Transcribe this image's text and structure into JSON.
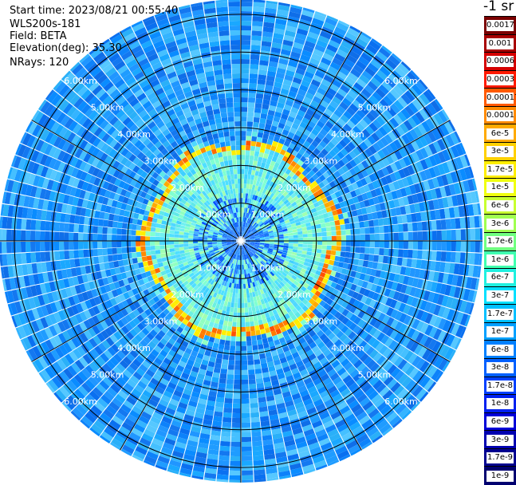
{
  "info": {
    "start_time": "Start time: 2023/08/21 00:55:40",
    "instrument": "WLS200s-181",
    "field": "Field: BETA",
    "elevation": "Elevation(deg): 35.30",
    "nrays": "NRays: 120"
  },
  "colorbar": {
    "title": "-1 sr",
    "levels": [
      {
        "label": "0.0017",
        "color": "#7a0000"
      },
      {
        "label": "0.001",
        "color": "#a80000"
      },
      {
        "label": "0.0006",
        "color": "#d40000"
      },
      {
        "label": "0.0003",
        "color": "#ff1a00"
      },
      {
        "label": "0.00017",
        "color": "#ff5a00"
      },
      {
        "label": "0.0001",
        "color": "#ff8a00"
      },
      {
        "label": "6e-5",
        "color": "#ffaa00"
      },
      {
        "label": "3e-5",
        "color": "#ffd000"
      },
      {
        "label": "1.7e-5",
        "color": "#ffee00"
      },
      {
        "label": "1e-5",
        "color": "#f0ff10"
      },
      {
        "label": "6e-6",
        "color": "#c8ff30"
      },
      {
        "label": "3e-6",
        "color": "#a0ff50"
      },
      {
        "label": "1.7e-6",
        "color": "#70ff80"
      },
      {
        "label": "1e-6",
        "color": "#40ffb0"
      },
      {
        "label": "6e-7",
        "color": "#20f0e0"
      },
      {
        "label": "3e-7",
        "color": "#00e0ff"
      },
      {
        "label": "1.7e-7",
        "color": "#00c0ff"
      },
      {
        "label": "1e-7",
        "color": "#00a0ff"
      },
      {
        "label": "6e-8",
        "color": "#0080ff"
      },
      {
        "label": "3e-8",
        "color": "#0060ff"
      },
      {
        "label": "1.7e-8",
        "color": "#0040ff"
      },
      {
        "label": "1e-8",
        "color": "#0020f0"
      },
      {
        "label": "6e-9",
        "color": "#0000d8"
      },
      {
        "label": "3e-9",
        "color": "#0000b0"
      },
      {
        "label": "1.7e-9",
        "color": "#000090"
      },
      {
        "label": "1e-9",
        "color": "#000070"
      }
    ]
  },
  "rings": [
    {
      "distance_km": 1,
      "label": "1.00km"
    },
    {
      "distance_km": 2,
      "label": "2.00km"
    },
    {
      "distance_km": 3,
      "label": "3.00km"
    },
    {
      "distance_km": 4,
      "label": "4.00km"
    },
    {
      "distance_km": 5,
      "label": "5.00km"
    },
    {
      "distance_km": 6,
      "label": "6.00km"
    }
  ],
  "max_range_km": 6.4,
  "cloud_range_km": 1.0
}
